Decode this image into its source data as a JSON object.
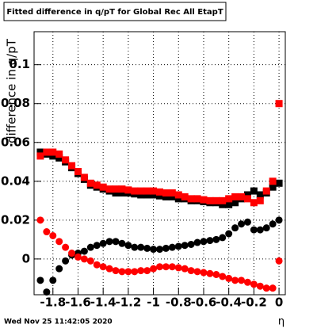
{
  "chart_data": {
    "type": "scatter",
    "title": "Fitted difference in q/pT for Global Rec All EtapT",
    "x_label": "η",
    "y_label": "difference in q/pT",
    "footer": "Wed Nov 25 11:42:05 2020",
    "xlim": [
      -1.95,
      0.05
    ],
    "ylim": [
      -0.0184,
      0.117
    ],
    "xticks": [
      -1.8,
      -1.6,
      -1.4,
      -1.2,
      -1,
      -0.8,
      -0.6,
      -0.4,
      -0.2,
      0
    ],
    "yticks": [
      0,
      0.02,
      0.04,
      0.06,
      0.08,
      0.1
    ],
    "grid": true,
    "x": [
      -1.9,
      -1.85,
      -1.8,
      -1.75,
      -1.7,
      -1.65,
      -1.6,
      -1.55,
      -1.5,
      -1.45,
      -1.4,
      -1.35,
      -1.3,
      -1.25,
      -1.2,
      -1.15,
      -1.1,
      -1.05,
      -1,
      -0.95,
      -0.9,
      -0.85,
      -0.8,
      -0.75,
      -0.7,
      -0.65,
      -0.6,
      -0.55,
      -0.5,
      -0.45,
      -0.4,
      -0.35,
      -0.3,
      -0.25,
      -0.2,
      -0.15,
      -0.1,
      -0.05,
      0
    ],
    "series": [
      {
        "color": "#000000",
        "marker": "square",
        "values": [
          0.055,
          0.054,
          0.053,
          0.052,
          0.05,
          0.047,
          0.044,
          0.041,
          0.038,
          0.037,
          0.036,
          0.035,
          0.034,
          0.034,
          0.034,
          0.0335,
          0.033,
          0.033,
          0.033,
          0.0325,
          0.032,
          0.032,
          0.031,
          0.031,
          0.03,
          0.03,
          0.0295,
          0.029,
          0.029,
          0.028,
          0.028,
          0.029,
          0.031,
          0.033,
          0.035,
          0.033,
          0.034,
          0.037,
          0.039
        ]
      },
      {
        "color": "#ff0000",
        "marker": "square",
        "values": [
          0.053,
          0.055,
          0.055,
          0.054,
          0.051,
          0.048,
          0.045,
          0.042,
          0.039,
          0.038,
          0.037,
          0.036,
          0.036,
          0.036,
          0.0355,
          0.035,
          0.035,
          0.035,
          0.035,
          0.0345,
          0.034,
          0.034,
          0.033,
          0.032,
          0.031,
          0.031,
          0.0305,
          0.03,
          0.03,
          0.03,
          0.031,
          0.032,
          0.032,
          0.031,
          0.029,
          0.03,
          0.035,
          0.04,
          0.08
        ]
      },
      {
        "color": "#000000",
        "marker": "circle",
        "values": [
          -0.011,
          -0.017,
          -0.011,
          -0.005,
          -0.001,
          0.002,
          0.003,
          0.004,
          0.006,
          0.007,
          0.008,
          0.009,
          0.009,
          0.008,
          0.007,
          0.006,
          0.006,
          0.0055,
          0.005,
          0.005,
          0.0055,
          0.006,
          0.0065,
          0.007,
          0.0075,
          0.0085,
          0.009,
          0.0095,
          0.01,
          0.011,
          0.013,
          0.016,
          0.018,
          0.019,
          0.015,
          0.015,
          0.016,
          0.018,
          0.02
        ]
      },
      {
        "color": "#ff0000",
        "marker": "circle",
        "values": [
          0.02,
          0.014,
          0.012,
          0.009,
          0.006,
          0.003,
          0.001,
          0.0,
          -0.001,
          -0.003,
          -0.004,
          -0.005,
          -0.006,
          -0.0065,
          -0.0065,
          -0.0065,
          -0.006,
          -0.006,
          -0.005,
          -0.004,
          -0.004,
          -0.004,
          -0.0045,
          -0.005,
          -0.006,
          -0.0065,
          -0.007,
          -0.0075,
          -0.008,
          -0.009,
          -0.01,
          -0.011,
          -0.011,
          -0.012,
          -0.013,
          -0.014,
          -0.015,
          -0.015,
          -0.001
        ]
      }
    ]
  }
}
